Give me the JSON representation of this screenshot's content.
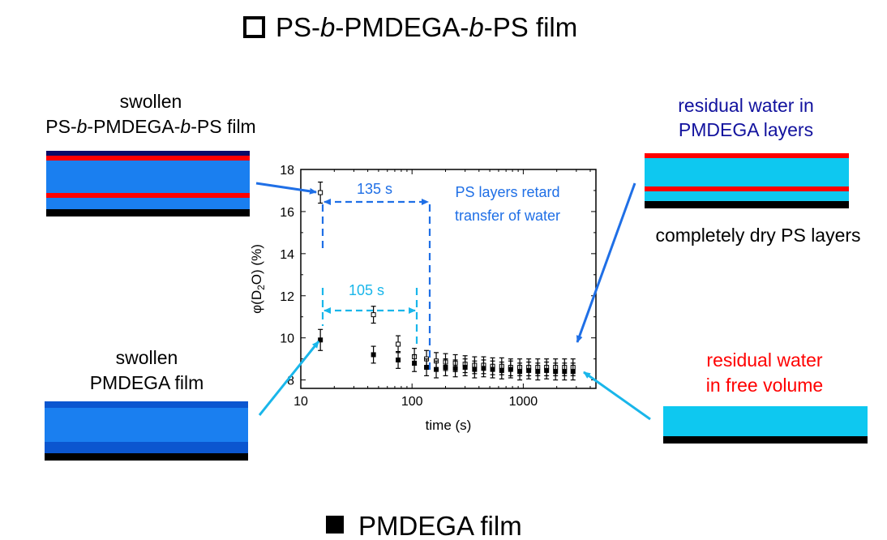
{
  "legend_top": {
    "marker": "open-square",
    "parts": [
      {
        "text": "PS-",
        "italic": false
      },
      {
        "text": "b",
        "italic": true
      },
      {
        "text": "-PMDEGA-",
        "italic": false
      },
      {
        "text": "b",
        "italic": true
      },
      {
        "text": "-PS film",
        "italic": false
      }
    ]
  },
  "legend_bottom": {
    "marker": "filled-square",
    "text": "PMDEGA film"
  },
  "panels": {
    "swollen_triblock": {
      "line1": "swollen",
      "line2_parts": [
        {
          "text": "PS-",
          "italic": false
        },
        {
          "text": "b",
          "italic": true
        },
        {
          "text": "-PMDEGA-",
          "italic": false
        },
        {
          "text": "b",
          "italic": true
        },
        {
          "text": "-PS film",
          "italic": false
        }
      ]
    },
    "residual_pmdega": {
      "line1": "residual water in",
      "line2": "PMDEGA layers",
      "color": "#12129e"
    },
    "dry_ps": {
      "text": "completely dry PS layers"
    },
    "swollen_pmdega": {
      "line1": "swollen",
      "line2": "PMDEGA film"
    },
    "residual_free": {
      "line1": "residual water",
      "line2": "in free volume",
      "color": "#ff0000"
    }
  },
  "annotations": {
    "ps_time": "135 s",
    "pmdega_time": "105 s",
    "retard_line1": "PS layers retard",
    "retard_line2": "transfer of water",
    "blue_color": "#1f6fe6",
    "cyan_color": "#19b6ea"
  },
  "colors": {
    "layer_black": "#000000",
    "layer_red": "#ff0000",
    "layer_blue": "#1a7ff0",
    "layer_dark_blue": "#0b56d0",
    "layer_navy": "#0a0a66",
    "layer_cyan": "#0ec8f0"
  },
  "chart_data": {
    "type": "scatter",
    "xlabel": "time (s)",
    "ylabel_parts": [
      "φ(D",
      "2",
      "O) (%)"
    ],
    "x_scale": "log",
    "xlim": [
      10,
      4500
    ],
    "ylim": [
      7.6,
      18
    ],
    "x_ticks": [
      10,
      100,
      1000
    ],
    "x_tick_labels": [
      "10",
      "100",
      "1000"
    ],
    "y_ticks": [
      8,
      10,
      12,
      14,
      16,
      18
    ],
    "y_tick_labels": [
      "8",
      "10",
      "12",
      "14",
      "16",
      "18"
    ],
    "series": [
      {
        "marker": "open-square",
        "points": [
          {
            "x": 15,
            "y": 16.9,
            "err": 0.5
          },
          {
            "x": 45,
            "y": 11.1,
            "err": 0.4
          },
          {
            "x": 75,
            "y": 9.7,
            "err": 0.4
          },
          {
            "x": 105,
            "y": 9.1,
            "err": 0.4
          },
          {
            "x": 135,
            "y": 9.0,
            "err": 0.4
          },
          {
            "x": 165,
            "y": 8.9,
            "err": 0.4
          },
          {
            "x": 200,
            "y": 8.85,
            "err": 0.4
          },
          {
            "x": 245,
            "y": 8.8,
            "err": 0.4
          },
          {
            "x": 300,
            "y": 8.75,
            "err": 0.4
          },
          {
            "x": 365,
            "y": 8.7,
            "err": 0.4
          },
          {
            "x": 440,
            "y": 8.7,
            "err": 0.4
          },
          {
            "x": 530,
            "y": 8.65,
            "err": 0.4
          },
          {
            "x": 640,
            "y": 8.65,
            "err": 0.4
          },
          {
            "x": 770,
            "y": 8.6,
            "err": 0.4
          },
          {
            "x": 930,
            "y": 8.6,
            "err": 0.4
          },
          {
            "x": 1120,
            "y": 8.6,
            "err": 0.4
          },
          {
            "x": 1350,
            "y": 8.6,
            "err": 0.4
          },
          {
            "x": 1620,
            "y": 8.6,
            "err": 0.4
          },
          {
            "x": 1950,
            "y": 8.6,
            "err": 0.4
          },
          {
            "x": 2350,
            "y": 8.6,
            "err": 0.4
          },
          {
            "x": 2800,
            "y": 8.6,
            "err": 0.4
          }
        ]
      },
      {
        "marker": "filled-square",
        "points": [
          {
            "x": 15,
            "y": 9.9,
            "err": 0.5
          },
          {
            "x": 45,
            "y": 9.2,
            "err": 0.4
          },
          {
            "x": 75,
            "y": 8.95,
            "err": 0.4
          },
          {
            "x": 105,
            "y": 8.8,
            "err": 0.4
          },
          {
            "x": 135,
            "y": 8.6,
            "err": 0.4
          },
          {
            "x": 165,
            "y": 8.5,
            "err": 0.4
          },
          {
            "x": 200,
            "y": 8.6,
            "err": 0.4
          },
          {
            "x": 245,
            "y": 8.55,
            "err": 0.4
          },
          {
            "x": 300,
            "y": 8.6,
            "err": 0.4
          },
          {
            "x": 365,
            "y": 8.5,
            "err": 0.4
          },
          {
            "x": 440,
            "y": 8.55,
            "err": 0.4
          },
          {
            "x": 530,
            "y": 8.5,
            "err": 0.4
          },
          {
            "x": 640,
            "y": 8.45,
            "err": 0.4
          },
          {
            "x": 770,
            "y": 8.5,
            "err": 0.4
          },
          {
            "x": 930,
            "y": 8.4,
            "err": 0.4
          },
          {
            "x": 1120,
            "y": 8.45,
            "err": 0.4
          },
          {
            "x": 1350,
            "y": 8.4,
            "err": 0.4
          },
          {
            "x": 1620,
            "y": 8.45,
            "err": 0.4
          },
          {
            "x": 1950,
            "y": 8.4,
            "err": 0.4
          },
          {
            "x": 2350,
            "y": 8.4,
            "err": 0.4
          },
          {
            "x": 2800,
            "y": 8.4,
            "err": 0.4
          }
        ]
      }
    ]
  }
}
